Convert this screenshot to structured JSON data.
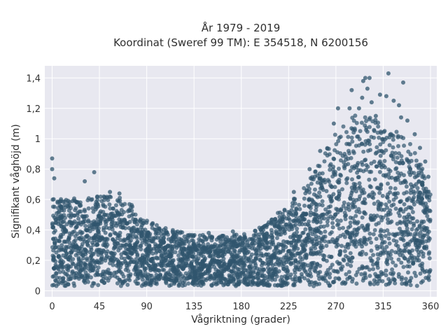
{
  "chart_data": {
    "type": "scatter",
    "title": "År 1979 - 2019",
    "subtitle": "Koordinat (Sweref 99 TM): E 354518, N 6200156",
    "xlabel": "Vågriktning (grader)",
    "ylabel": "Signifikant våghöjd (m)",
    "xlim": [
      -7,
      366
    ],
    "ylim": [
      -0.04,
      1.48
    ],
    "x_ticks": [
      0,
      45,
      90,
      135,
      180,
      225,
      270,
      315,
      360
    ],
    "x_tick_labels": [
      "0",
      "45",
      "90",
      "135",
      "180",
      "225",
      "270",
      "315",
      "360"
    ],
    "y_ticks": [
      0,
      0.2,
      0.4,
      0.6,
      0.8,
      1.0,
      1.2,
      1.4
    ],
    "y_tick_labels": [
      "0",
      "0,2",
      "0,4",
      "0,6",
      "0,8",
      "1",
      "1,2",
      "1,4"
    ],
    "grid": true,
    "legend": false,
    "envelope": {
      "x": [
        0,
        15,
        30,
        45,
        60,
        75,
        90,
        105,
        120,
        135,
        150,
        165,
        180,
        195,
        210,
        225,
        240,
        255,
        270,
        285,
        300,
        315,
        330,
        345,
        360
      ],
      "upper_hs": [
        0.55,
        0.55,
        0.56,
        0.58,
        0.57,
        0.52,
        0.42,
        0.38,
        0.36,
        0.34,
        0.33,
        0.33,
        0.34,
        0.37,
        0.44,
        0.52,
        0.62,
        0.78,
        0.95,
        1.05,
        1.05,
        1.0,
        0.95,
        0.85,
        0.6
      ]
    },
    "outliers": [
      {
        "x": 0,
        "y": 0.87
      },
      {
        "x": 0,
        "y": 0.8
      },
      {
        "x": 2,
        "y": 0.74
      },
      {
        "x": 40,
        "y": 0.78
      },
      {
        "x": 31,
        "y": 0.72
      },
      {
        "x": 64,
        "y": 0.64
      },
      {
        "x": 55,
        "y": 0.65
      },
      {
        "x": 102,
        "y": 0.41
      },
      {
        "x": 149,
        "y": 0.38
      },
      {
        "x": 172,
        "y": 0.39
      },
      {
        "x": 212,
        "y": 0.47
      },
      {
        "x": 230,
        "y": 0.65
      },
      {
        "x": 245,
        "y": 0.8
      },
      {
        "x": 255,
        "y": 0.92
      },
      {
        "x": 268,
        "y": 1.1
      },
      {
        "x": 272,
        "y": 1.2
      },
      {
        "x": 283,
        "y": 1.2
      },
      {
        "x": 285,
        "y": 1.32
      },
      {
        "x": 292,
        "y": 1.2
      },
      {
        "x": 295,
        "y": 1.27
      },
      {
        "x": 296,
        "y": 1.38
      },
      {
        "x": 298,
        "y": 1.4
      },
      {
        "x": 300,
        "y": 1.33
      },
      {
        "x": 302,
        "y": 1.4
      },
      {
        "x": 304,
        "y": 1.24
      },
      {
        "x": 308,
        "y": 1.15
      },
      {
        "x": 312,
        "y": 1.29
      },
      {
        "x": 318,
        "y": 1.28
      },
      {
        "x": 320,
        "y": 1.43
      },
      {
        "x": 325,
        "y": 1.25
      },
      {
        "x": 330,
        "y": 1.22
      },
      {
        "x": 332,
        "y": 1.14
      },
      {
        "x": 334,
        "y": 1.37
      },
      {
        "x": 338,
        "y": 1.12
      },
      {
        "x": 345,
        "y": 1.03
      },
      {
        "x": 350,
        "y": 0.94
      },
      {
        "x": 355,
        "y": 0.85
      },
      {
        "x": 358,
        "y": 0.75
      }
    ],
    "marker_color": "#30566e",
    "background_color": "#e8e8f0",
    "grid_color": "#ffffff"
  }
}
